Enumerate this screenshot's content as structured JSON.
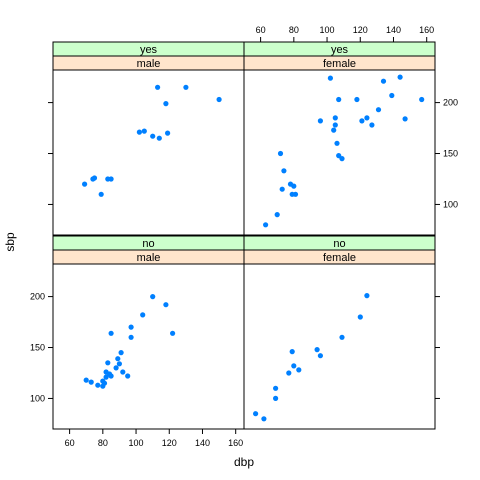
{
  "chart_data": {
    "type": "scatter",
    "xlabel": "dbp",
    "ylabel": "sbp",
    "xlim": [
      50,
      165
    ],
    "ylim": [
      70,
      232
    ],
    "x_ticks": [
      60,
      80,
      100,
      120,
      140,
      160
    ],
    "y_ticks": [
      100,
      150,
      200
    ],
    "colors": {
      "points": "#0080ff",
      "strip_a": "#ccffcc",
      "strip_b": "#ffe5cc"
    },
    "panels": [
      {
        "strip_a": "no",
        "strip_b": "male",
        "points": [
          {
            "x": 70,
            "y": 118
          },
          {
            "x": 73,
            "y": 116
          },
          {
            "x": 77,
            "y": 113
          },
          {
            "x": 80,
            "y": 112
          },
          {
            "x": 80,
            "y": 117
          },
          {
            "x": 81,
            "y": 115
          },
          {
            "x": 82,
            "y": 121
          },
          {
            "x": 82,
            "y": 126
          },
          {
            "x": 83,
            "y": 135
          },
          {
            "x": 84,
            "y": 124
          },
          {
            "x": 85,
            "y": 122
          },
          {
            "x": 85,
            "y": 164
          },
          {
            "x": 88,
            "y": 130
          },
          {
            "x": 89,
            "y": 139
          },
          {
            "x": 90,
            "y": 134
          },
          {
            "x": 91,
            "y": 145
          },
          {
            "x": 92,
            "y": 126
          },
          {
            "x": 95,
            "y": 122
          },
          {
            "x": 97,
            "y": 160
          },
          {
            "x": 97,
            "y": 170
          },
          {
            "x": 104,
            "y": 182
          },
          {
            "x": 110,
            "y": 200
          },
          {
            "x": 118,
            "y": 192
          },
          {
            "x": 122,
            "y": 164
          }
        ]
      },
      {
        "strip_a": "no",
        "strip_b": "female",
        "points": [
          {
            "x": 57,
            "y": 85
          },
          {
            "x": 62,
            "y": 80
          },
          {
            "x": 69,
            "y": 100
          },
          {
            "x": 69,
            "y": 110
          },
          {
            "x": 77,
            "y": 125
          },
          {
            "x": 79,
            "y": 146
          },
          {
            "x": 80,
            "y": 132
          },
          {
            "x": 83,
            "y": 128
          },
          {
            "x": 94,
            "y": 148
          },
          {
            "x": 96,
            "y": 142
          },
          {
            "x": 109,
            "y": 160
          },
          {
            "x": 120,
            "y": 180
          },
          {
            "x": 124,
            "y": 201
          }
        ]
      },
      {
        "strip_a": "yes",
        "strip_b": "male",
        "points": [
          {
            "x": 69,
            "y": 120
          },
          {
            "x": 74,
            "y": 125
          },
          {
            "x": 75,
            "y": 126
          },
          {
            "x": 79,
            "y": 110
          },
          {
            "x": 83,
            "y": 125
          },
          {
            "x": 85,
            "y": 125
          },
          {
            "x": 102,
            "y": 171
          },
          {
            "x": 105,
            "y": 172
          },
          {
            "x": 110,
            "y": 167
          },
          {
            "x": 113,
            "y": 215
          },
          {
            "x": 114,
            "y": 165
          },
          {
            "x": 118,
            "y": 199
          },
          {
            "x": 119,
            "y": 170
          },
          {
            "x": 130,
            "y": 215
          },
          {
            "x": 150,
            "y": 203
          }
        ]
      },
      {
        "strip_a": "yes",
        "strip_b": "female",
        "points": [
          {
            "x": 63,
            "y": 80
          },
          {
            "x": 70,
            "y": 90
          },
          {
            "x": 72,
            "y": 150
          },
          {
            "x": 73,
            "y": 115
          },
          {
            "x": 74,
            "y": 133
          },
          {
            "x": 78,
            "y": 120
          },
          {
            "x": 79,
            "y": 110
          },
          {
            "x": 80,
            "y": 118
          },
          {
            "x": 81,
            "y": 110
          },
          {
            "x": 96,
            "y": 182
          },
          {
            "x": 102,
            "y": 224
          },
          {
            "x": 104,
            "y": 173
          },
          {
            "x": 105,
            "y": 178
          },
          {
            "x": 105,
            "y": 185
          },
          {
            "x": 106,
            "y": 160
          },
          {
            "x": 107,
            "y": 148
          },
          {
            "x": 107,
            "y": 203
          },
          {
            "x": 109,
            "y": 145
          },
          {
            "x": 118,
            "y": 203
          },
          {
            "x": 121,
            "y": 182
          },
          {
            "x": 124,
            "y": 185
          },
          {
            "x": 127,
            "y": 178
          },
          {
            "x": 131,
            "y": 193
          },
          {
            "x": 134,
            "y": 221
          },
          {
            "x": 139,
            "y": 207
          },
          {
            "x": 144,
            "y": 225
          },
          {
            "x": 147,
            "y": 184
          },
          {
            "x": 157,
            "y": 203
          }
        ]
      }
    ]
  }
}
